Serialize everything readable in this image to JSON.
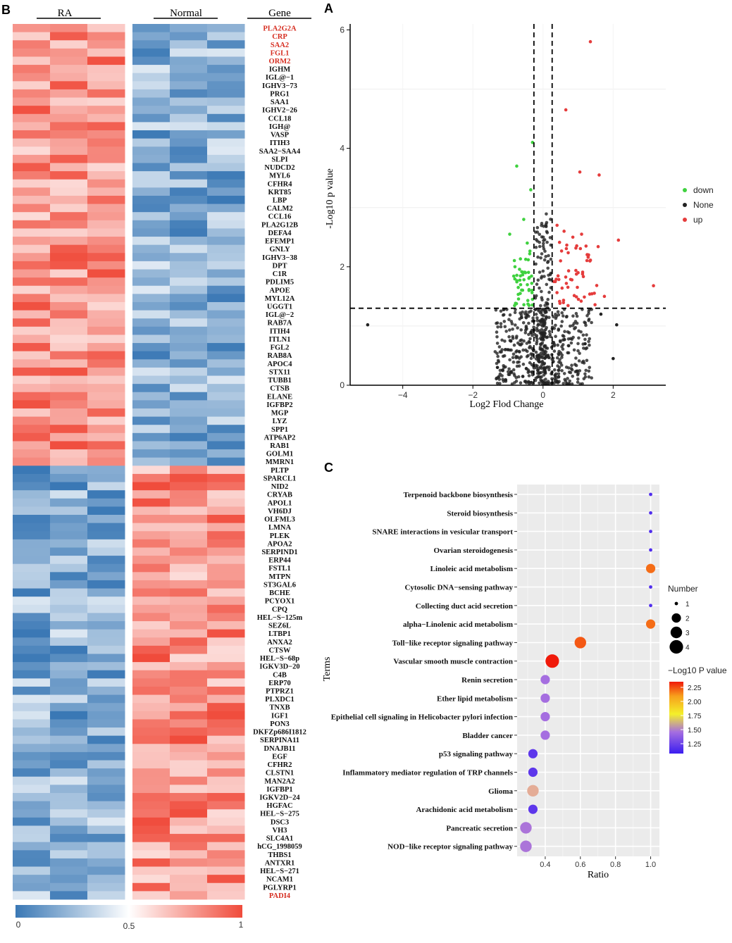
{
  "panels": {
    "b_letter": "B",
    "a_letter": "A",
    "c_letter": "C"
  },
  "colors": {
    "low": "#3a78b5",
    "mid": "#ffffff",
    "high": "#f04b3b",
    "down": "#3fd13f",
    "none": "#222222",
    "up": "#e53c3c"
  },
  "chart_data": [
    {
      "id": "heatmap",
      "type": "heatmap",
      "groups": [
        "RA",
        "Normal"
      ],
      "gene_header": "Gene",
      "samples_per_group": 3,
      "up_in_ra_count": 54,
      "genes": [
        "PLA2G2A",
        "CRP",
        "SAA2",
        "FGL1",
        "ORM2",
        "IGHM",
        "IGL@-1",
        "IGHV3-73",
        "PRG1",
        "SAA1",
        "IGHV2-26",
        "CCL18",
        "IGH@",
        "VASP",
        "ITIH3",
        "SAA2-SAA4",
        "SLPI",
        "NUDCD2",
        "MYL6",
        "CFHR4",
        "KRT85",
        "LBP",
        "CALM2",
        "CCL16",
        "PLA2G12B",
        "DEFA4",
        "EFEMP1",
        "GNLY",
        "IGHV3-38",
        "DPT",
        "C1R",
        "PDLIM5",
        "APOE",
        "MYL12A",
        "UGGT1",
        "IGL@-2",
        "RAB7A",
        "ITIH4",
        "ITLN1",
        "FGL2",
        "RAB8A",
        "APOC4",
        "STX11",
        "TUBB1",
        "CTSB",
        "ELANE",
        "IGFBP2",
        "MGP",
        "LYZ",
        "SPP1",
        "ATP6AP2",
        "RAB1",
        "GOLM1",
        "MMRN1",
        "PLTP",
        "SPARCL1",
        "NID2",
        "CRYAB",
        "APOL1",
        "VH6DJ",
        "OLFML3",
        "LMNA",
        "PLEK",
        "APOA2",
        "SERPIND1",
        "ERP44",
        "FSTL1",
        "MTPN",
        "ST3GAL6",
        "BCHE",
        "PCYOX1",
        "CPQ",
        "HEL-S-125m",
        "SEZ6L",
        "LTBP1",
        "ANXA2",
        "CTSW",
        "HEL-S-68p",
        "IGKV3D-20",
        "C4B",
        "ERP70",
        "PTPRZ1",
        "PLXDC1",
        "TNXB",
        "IGF1",
        "PON3",
        "DKFZp686I1812",
        "SERPINA11",
        "DNAJB11",
        "EGF",
        "CFHR2",
        "CLSTN1",
        "MAN2A2",
        "IGFBP1",
        "IGKV2D-24",
        "HGFAC",
        "HEL-S-275",
        "DSC3",
        "VH3",
        "SLC4A1",
        "hCG_1998059",
        "THBS1",
        "ANTXR1",
        "HEL-S-271",
        "NCAM1",
        "PGLYRP1",
        "PADI4"
      ],
      "highlighted_genes": [
        "PLA2G2A",
        "CRP",
        "SAA2",
        "FGL1",
        "ORM2",
        "PADI4"
      ],
      "colorbar": {
        "min": "0",
        "mid": "0.5",
        "max": "1"
      }
    },
    {
      "id": "volcano",
      "type": "scatter",
      "xlabel": "Log2 Flod Change",
      "ylabel": "-Log10 p value",
      "xlim": [
        -5.5,
        3.5
      ],
      "ylim": [
        0,
        6.1
      ],
      "x_ticks": [
        "-4",
        "-2",
        "0",
        "2"
      ],
      "y_ticks": [
        "0",
        "2",
        "4",
        "6"
      ],
      "thresholds": {
        "fc": [
          -0.26,
          0.26
        ],
        "p": 1.3
      },
      "legend": [
        "down",
        "None",
        "up"
      ],
      "highlight_points": {
        "up": [
          [
            1.35,
            5.8
          ],
          [
            0.65,
            4.65
          ],
          [
            1.05,
            3.6
          ],
          [
            1.6,
            3.55
          ],
          [
            2.15,
            2.45
          ],
          [
            3.15,
            1.68
          ],
          [
            1.75,
            1.5
          ],
          [
            0.4,
            2.7
          ],
          [
            0.6,
            2.6
          ],
          [
            0.85,
            2.5
          ],
          [
            1.1,
            2.55
          ],
          [
            1.3,
            2.2
          ],
          [
            0.5,
            2.1
          ],
          [
            1.0,
            1.9
          ],
          [
            0.35,
            1.75
          ]
        ],
        "down": [
          [
            -0.3,
            4.1
          ],
          [
            -0.75,
            3.7
          ],
          [
            -0.35,
            3.3
          ],
          [
            -0.95,
            2.55
          ],
          [
            -0.55,
            2.8
          ],
          [
            -0.45,
            2.4
          ],
          [
            -0.8,
            2.0
          ],
          [
            -0.5,
            1.9
          ],
          [
            -0.4,
            1.6
          ],
          [
            -0.65,
            1.55
          ],
          [
            -0.3,
            1.45
          ]
        ],
        "none_outliers": [
          [
            -5.0,
            1.02
          ],
          [
            2.1,
            1.02
          ],
          [
            1.65,
            1.2
          ],
          [
            -1.0,
            0.6
          ],
          [
            2.0,
            0.45
          ],
          [
            1.2,
            0.7
          ],
          [
            -1.3,
            0.3
          ]
        ]
      }
    },
    {
      "id": "enrichment",
      "type": "scatter",
      "xlabel": "Ratio",
      "ylabel": "Terms",
      "xlim": [
        0.24,
        1.05
      ],
      "x_ticks": [
        "0.4",
        "0.6",
        "0.8",
        "1.0"
      ],
      "terms": [
        {
          "label": "Terpenoid backbone biosynthesis",
          "ratio": 1.0,
          "number": 1,
          "pvalue": 1.05
        },
        {
          "label": "Steroid biosynthesis",
          "ratio": 1.0,
          "number": 1,
          "pvalue": 1.05
        },
        {
          "label": "SNARE interactions in vesicular transport",
          "ratio": 1.0,
          "number": 1,
          "pvalue": 1.05
        },
        {
          "label": "Ovarian steroidogenesis",
          "ratio": 1.0,
          "number": 1,
          "pvalue": 1.05
        },
        {
          "label": "Linoleic acid metabolism",
          "ratio": 1.0,
          "number": 2,
          "pvalue": 2.1
        },
        {
          "label": "Cytosolic DNA-sensing pathway",
          "ratio": 1.0,
          "number": 1,
          "pvalue": 1.05
        },
        {
          "label": "Collecting duct acid secretion",
          "ratio": 1.0,
          "number": 1,
          "pvalue": 1.05
        },
        {
          "label": "alpha-Linolenic acid metabolism",
          "ratio": 1.0,
          "number": 2,
          "pvalue": 2.1
        },
        {
          "label": "Toll-like receptor signaling pathway",
          "ratio": 0.6,
          "number": 3,
          "pvalue": 2.15
        },
        {
          "label": "Vascular smooth muscle contraction",
          "ratio": 0.44,
          "number": 4,
          "pvalue": 2.3
        },
        {
          "label": "Renin secretion",
          "ratio": 0.4,
          "number": 2,
          "pvalue": 1.25
        },
        {
          "label": "Ether lipid metabolism",
          "ratio": 0.4,
          "number": 2,
          "pvalue": 1.25
        },
        {
          "label": "Epithelial cell signaling in Helicobacter pylori infection",
          "ratio": 0.4,
          "number": 2,
          "pvalue": 1.25
        },
        {
          "label": "Bladder cancer",
          "ratio": 0.4,
          "number": 2,
          "pvalue": 1.25
        },
        {
          "label": "p53 signaling pathway",
          "ratio": 0.33,
          "number": 2,
          "pvalue": 1.08
        },
        {
          "label": "Inflammatory mediator regulation of TRP channels",
          "ratio": 0.33,
          "number": 2,
          "pvalue": 1.08
        },
        {
          "label": "Glioma",
          "ratio": 0.33,
          "number": 3,
          "pvalue": 1.75
        },
        {
          "label": "Arachidonic acid metabolism",
          "ratio": 0.33,
          "number": 2,
          "pvalue": 1.08
        },
        {
          "label": "Pancreatic secretion",
          "ratio": 0.29,
          "number": 3,
          "pvalue": 1.3
        },
        {
          "label": "NOD-like receptor signaling pathway",
          "ratio": 0.29,
          "number": 3,
          "pvalue": 1.3
        }
      ],
      "size_legend": {
        "title": "Number",
        "values": [
          "1",
          "2",
          "3",
          "4"
        ]
      },
      "color_legend": {
        "title": "-Log10 P value",
        "ticks": [
          "2.25",
          "2.00",
          "1.75",
          "1.50",
          "1.25"
        ]
      }
    }
  ]
}
